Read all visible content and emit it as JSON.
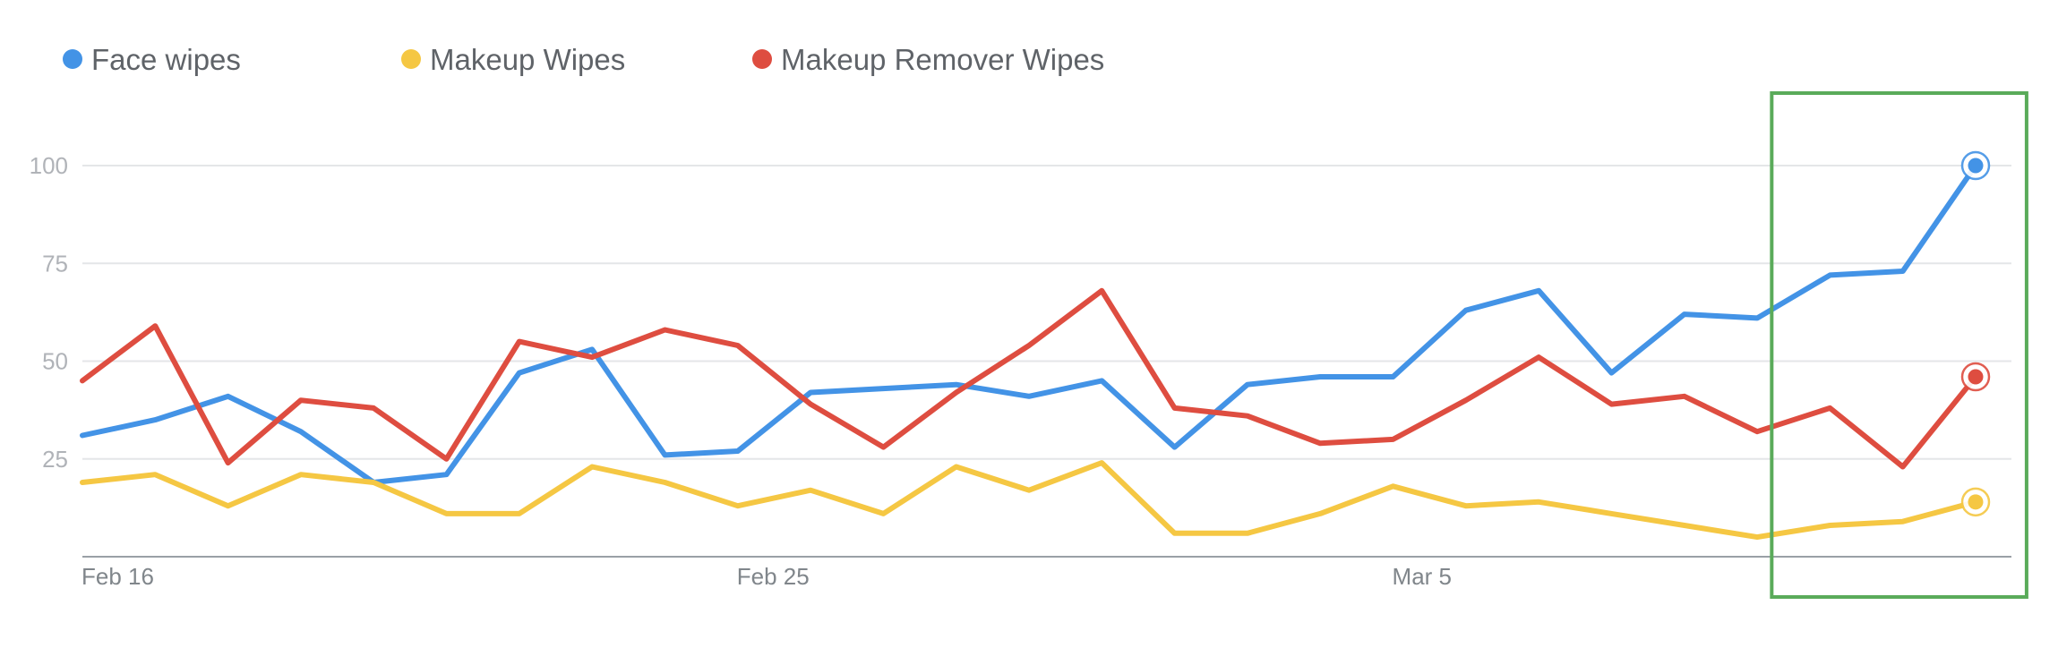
{
  "chart_data": {
    "type": "line",
    "categories": [
      "Feb 16",
      "",
      "",
      "",
      "",
      "",
      "",
      "",
      "",
      "Feb 25",
      "",
      "",
      "",
      "",
      "",
      "",
      "",
      "",
      "Mar 5",
      "",
      "",
      "",
      "",
      "",
      "",
      "",
      ""
    ],
    "ylim": [
      0,
      100
    ],
    "yticks": [
      "25",
      "50",
      "75",
      "100"
    ],
    "grid": true,
    "legend_position": "top-left",
    "series": [
      {
        "name": "Face wipes",
        "color": "#4393e6",
        "values": [
          31,
          35,
          41,
          32,
          19,
          21,
          47,
          53,
          26,
          27,
          42,
          43,
          44,
          41,
          45,
          28,
          44,
          46,
          46,
          63,
          68,
          47,
          62,
          61,
          72,
          73,
          100
        ]
      },
      {
        "name": "Makeup Wipes",
        "color": "#f5c743",
        "values": [
          19,
          21,
          13,
          21,
          19,
          11,
          11,
          23,
          19,
          13,
          17,
          11,
          23,
          17,
          24,
          6,
          6,
          11,
          18,
          13,
          14,
          11,
          8,
          5,
          8,
          9,
          14
        ]
      },
      {
        "name": "Makeup Remover Wipes",
        "color": "#de4d40",
        "values": [
          45,
          59,
          24,
          40,
          38,
          25,
          55,
          51,
          58,
          54,
          39,
          28,
          42,
          54,
          68,
          38,
          36,
          29,
          30,
          40,
          51,
          39,
          41,
          32,
          38,
          23,
          46
        ]
      }
    ],
    "highlight": {
      "color": "#5aab5a",
      "from_index": 23.2,
      "to_index": 26.7
    }
  }
}
